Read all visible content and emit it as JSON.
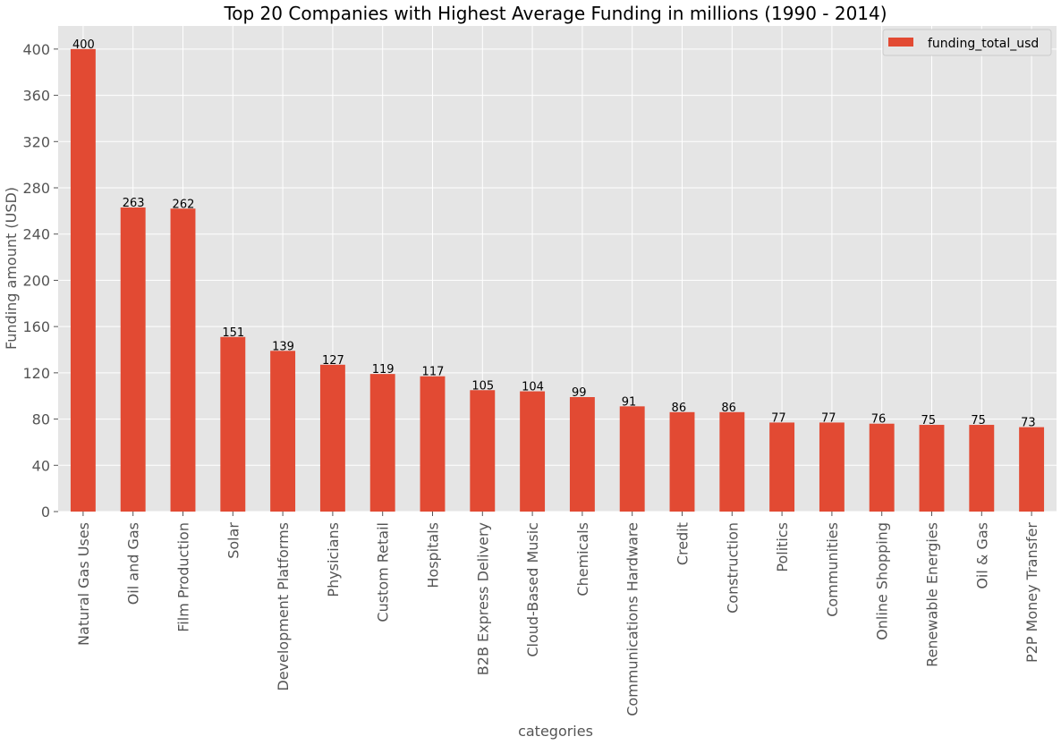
{
  "chart_data": {
    "type": "bar",
    "title": "Top 20 Companies with Highest Average Funding in millions (1990 - 2014)",
    "xlabel": "categories",
    "ylabel": "Funding amount (USD)",
    "ylim": [
      0,
      420
    ],
    "yticks": [
      "0",
      "40",
      "80",
      "120",
      "160",
      "200",
      "240",
      "280",
      "320",
      "360",
      "400"
    ],
    "grid": true,
    "legend_position": "top-right",
    "bar_color": "#E24A33",
    "background_color": "#E5E5E5",
    "categories": [
      "Natural Gas Uses",
      "Oil and Gas",
      "Film Production",
      "Solar",
      "Development Platforms",
      "Physicians",
      "Custom Retail",
      "Hospitals",
      "B2B Express Delivery",
      "Cloud-Based Music",
      "Chemicals",
      "Communications Hardware",
      "Credit",
      "Construction",
      "Politics",
      "Communities",
      "Online Shopping",
      "Renewable Energies",
      "Oil & Gas",
      "P2P Money Transfer"
    ],
    "series": [
      {
        "name": "funding_total_usd",
        "values": [
          400,
          263,
          262,
          151,
          139,
          127,
          119,
          117,
          105,
          104,
          99,
          91,
          86,
          86,
          77,
          77,
          76,
          75,
          75,
          73
        ],
        "labels": [
          "400",
          "263",
          "262",
          "151",
          "139",
          "127",
          "119",
          "117",
          "105",
          "104",
          "99",
          "91",
          "86",
          "86",
          "77",
          "77",
          "76",
          "75",
          "75",
          "73"
        ]
      }
    ]
  }
}
